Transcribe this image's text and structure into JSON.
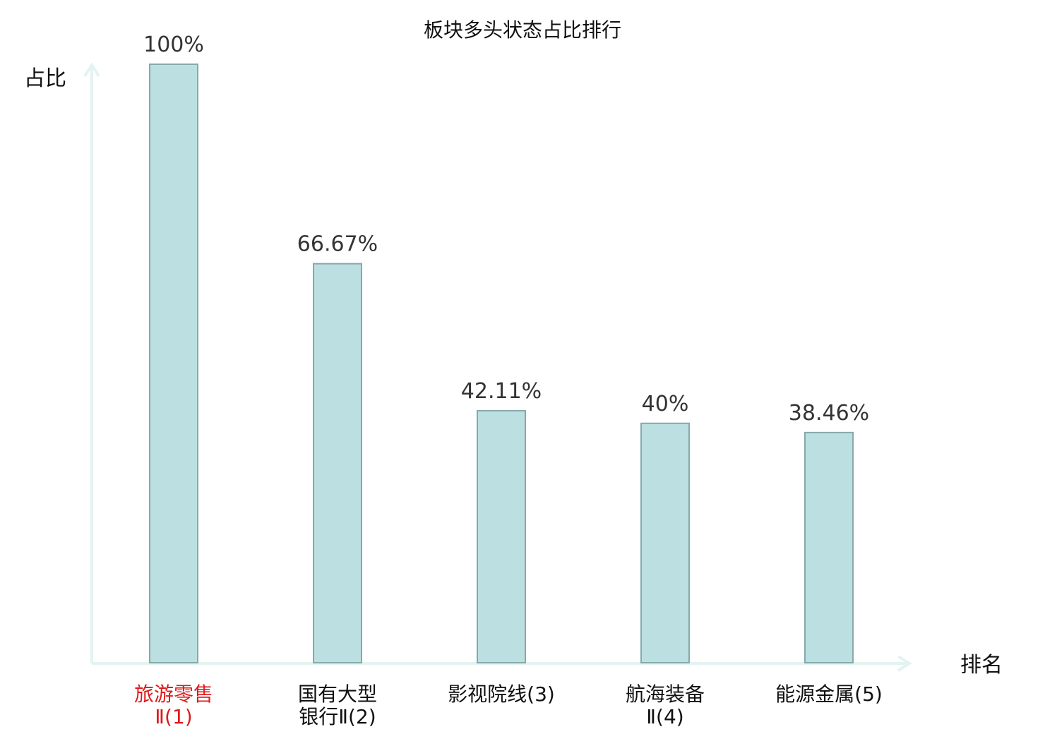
{
  "chart_data": {
    "type": "bar",
    "title": "板块多头状态占比排行",
    "ylabel": "占比",
    "xlabel": "排名",
    "categories": [
      [
        "旅游零售",
        "Ⅱ(1)"
      ],
      [
        "国有大型",
        "银行Ⅱ(2)"
      ],
      [
        "影视院线(3)"
      ],
      [
        "航海装备",
        "Ⅱ(4)"
      ],
      [
        "能源金属(5)"
      ]
    ],
    "values": [
      100,
      66.67,
      42.11,
      40,
      38.46
    ],
    "value_labels": [
      "100%",
      "66.67%",
      "42.11%",
      "40%",
      "38.46%"
    ],
    "ylim": [
      0,
      100
    ],
    "grid": false,
    "highlight_index": 0,
    "colors": {
      "bar_fill": "#bce0e2",
      "bar_stroke": "#86a9ab",
      "axis": "#e3f3f1",
      "highlight_text": "#e0191b",
      "normal_text": "#111111",
      "value_text": "#333333"
    }
  }
}
